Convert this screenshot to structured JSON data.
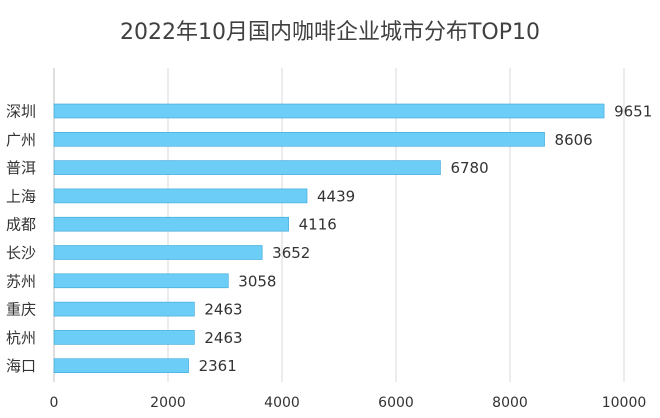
{
  "chart_data": {
    "type": "bar",
    "orientation": "horizontal",
    "title": "2022年10月国内咖啡企业城市分布TOP10",
    "categories": [
      "深圳",
      "广州",
      "普洱",
      "上海",
      "成都",
      "长沙",
      "苏州",
      "重庆",
      "杭州",
      "海口"
    ],
    "values": [
      9651,
      8606,
      6780,
      4439,
      4116,
      3652,
      3058,
      2463,
      2463,
      2361
    ],
    "xlim": [
      0,
      10000
    ],
    "xticks": [
      "0",
      "2000",
      "4000",
      "6000",
      "8000",
      "10000"
    ],
    "grid": "vertical",
    "bar_color": "#6ccdf6",
    "bar_stroke": "#3aa6d8"
  }
}
